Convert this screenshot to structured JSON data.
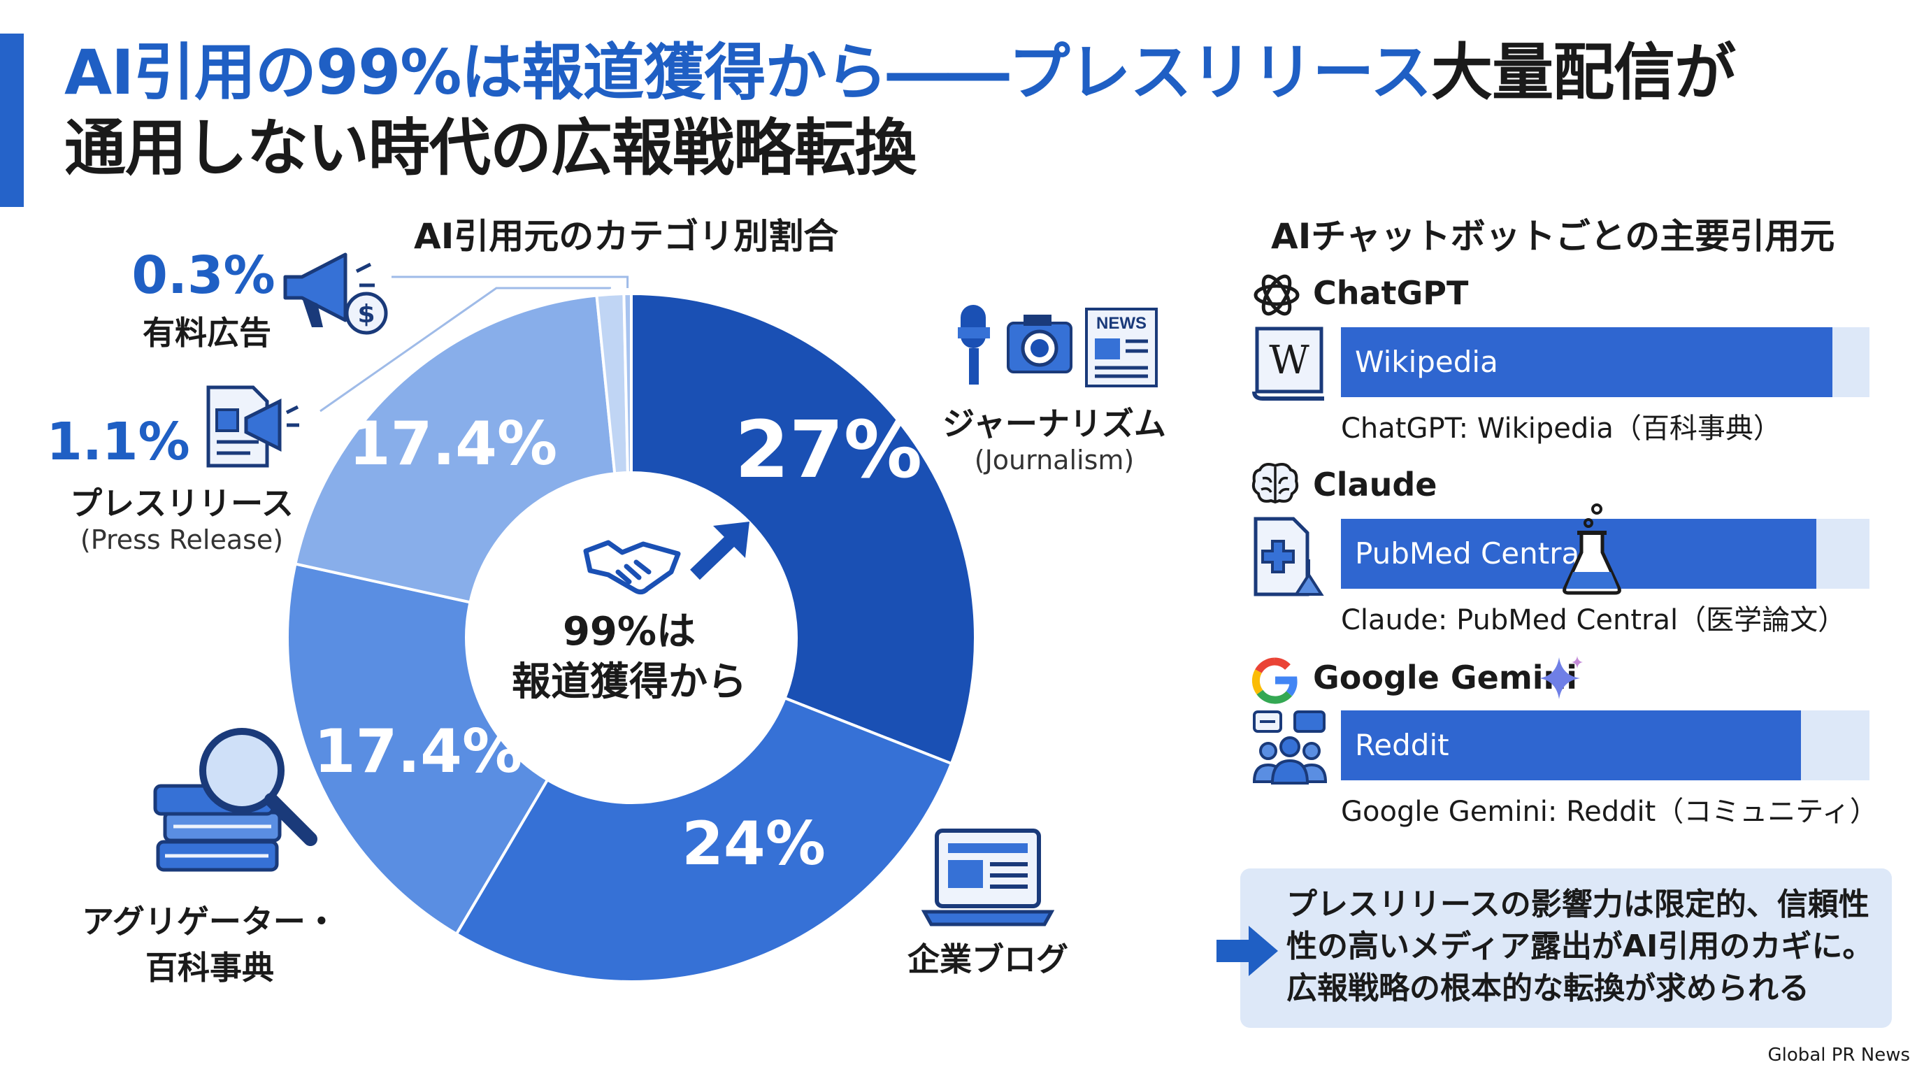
{
  "title": {
    "line1_highlight": "AI引用の99%は報道獲得から――プレスリリース",
    "line1_rest": "大量配信が",
    "line2": "通用しない時代の広報戦略転換"
  },
  "chart_data": {
    "type": "pie",
    "title": "AI引用元のカテゴリ別割合",
    "center_label": [
      "99%は",
      "報道獲得から"
    ],
    "slices": [
      {
        "label": "ジャーナリズム",
        "sublabel": "(Journalism)",
        "value": 27,
        "display": "27%",
        "color": "#1a50b4"
      },
      {
        "label": "企業ブログ",
        "value": 24,
        "display": "24%",
        "color": "#3671d6"
      },
      {
        "label": "アグリゲーター・百科事典",
        "value": 17.4,
        "display": "17.4%",
        "color": "#5a8ee2"
      },
      {
        "label": "アグリゲーター・百科事典",
        "value": 17.4,
        "display": "17.4%",
        "color": "#88aeea"
      },
      {
        "label": "プレスリリース",
        "sublabel": "(Press Release)",
        "value": 1.1,
        "display": "1.1%",
        "color": "#c0d5f4"
      },
      {
        "label": "有料広告",
        "value": 0.3,
        "display": "0.3%",
        "color": "#a7c3ef"
      }
    ]
  },
  "annotations": {
    "journalism": {
      "jp": "ジャーナリズム",
      "en": "(Journalism)"
    },
    "blog": {
      "jp": "企業ブログ"
    },
    "aggregator": {
      "line1": "アグリゲーター・",
      "line2": "百科事典"
    },
    "press": {
      "pct": "1.1%",
      "jp": "プレスリリース",
      "en": "(Press Release)"
    },
    "ads": {
      "pct": "0.3%",
      "jp": "有料広告"
    }
  },
  "icons": {
    "journalism": "microphone-camera-newspaper-icon",
    "newspaper_text": "NEWS",
    "blog": "laptop-icon",
    "aggregator": "books-magnifier-icon",
    "press": "document-megaphone-icon",
    "ads": "megaphone-dollar-icon",
    "center": "handshake-icon",
    "center_arrow": "arrow-up-right-icon"
  },
  "bots_section": {
    "title": "AIチャットボットごとの主要引用元",
    "items": [
      {
        "name": "ChatGPT",
        "icon": "openai-logo-icon",
        "source_icon": "wikipedia-book-icon",
        "source_icon_text": "W",
        "bar_label": "Wikipedia",
        "share": 0.93,
        "caption": "ChatGPT: Wikipedia（百科事典）"
      },
      {
        "name": "Claude",
        "icon": "brain-icon",
        "source_icon": "medical-document-icon",
        "bar_label": "PubMed Central",
        "share": 0.9,
        "caption": "Claude: PubMed Central（医学論文）"
      },
      {
        "name": "Google Gemini",
        "icon": "google-logo-icon",
        "source_icon": "community-icon",
        "bar_label": "Reddit",
        "share": 0.87,
        "caption": "Google Gemini: Reddit（コミュニティ）"
      }
    ]
  },
  "note": {
    "lines": [
      "プレスリリースの影響力は限定的、信頼性",
      "性の高いメディア露出がAI引用のカギに。",
      "広報戦略の根本的な転換が求められる"
    ]
  },
  "source": "Global PR News",
  "colors": {
    "accent": "#1f5fc4",
    "bar": "#2f66d0",
    "track": "#dde8f8"
  }
}
